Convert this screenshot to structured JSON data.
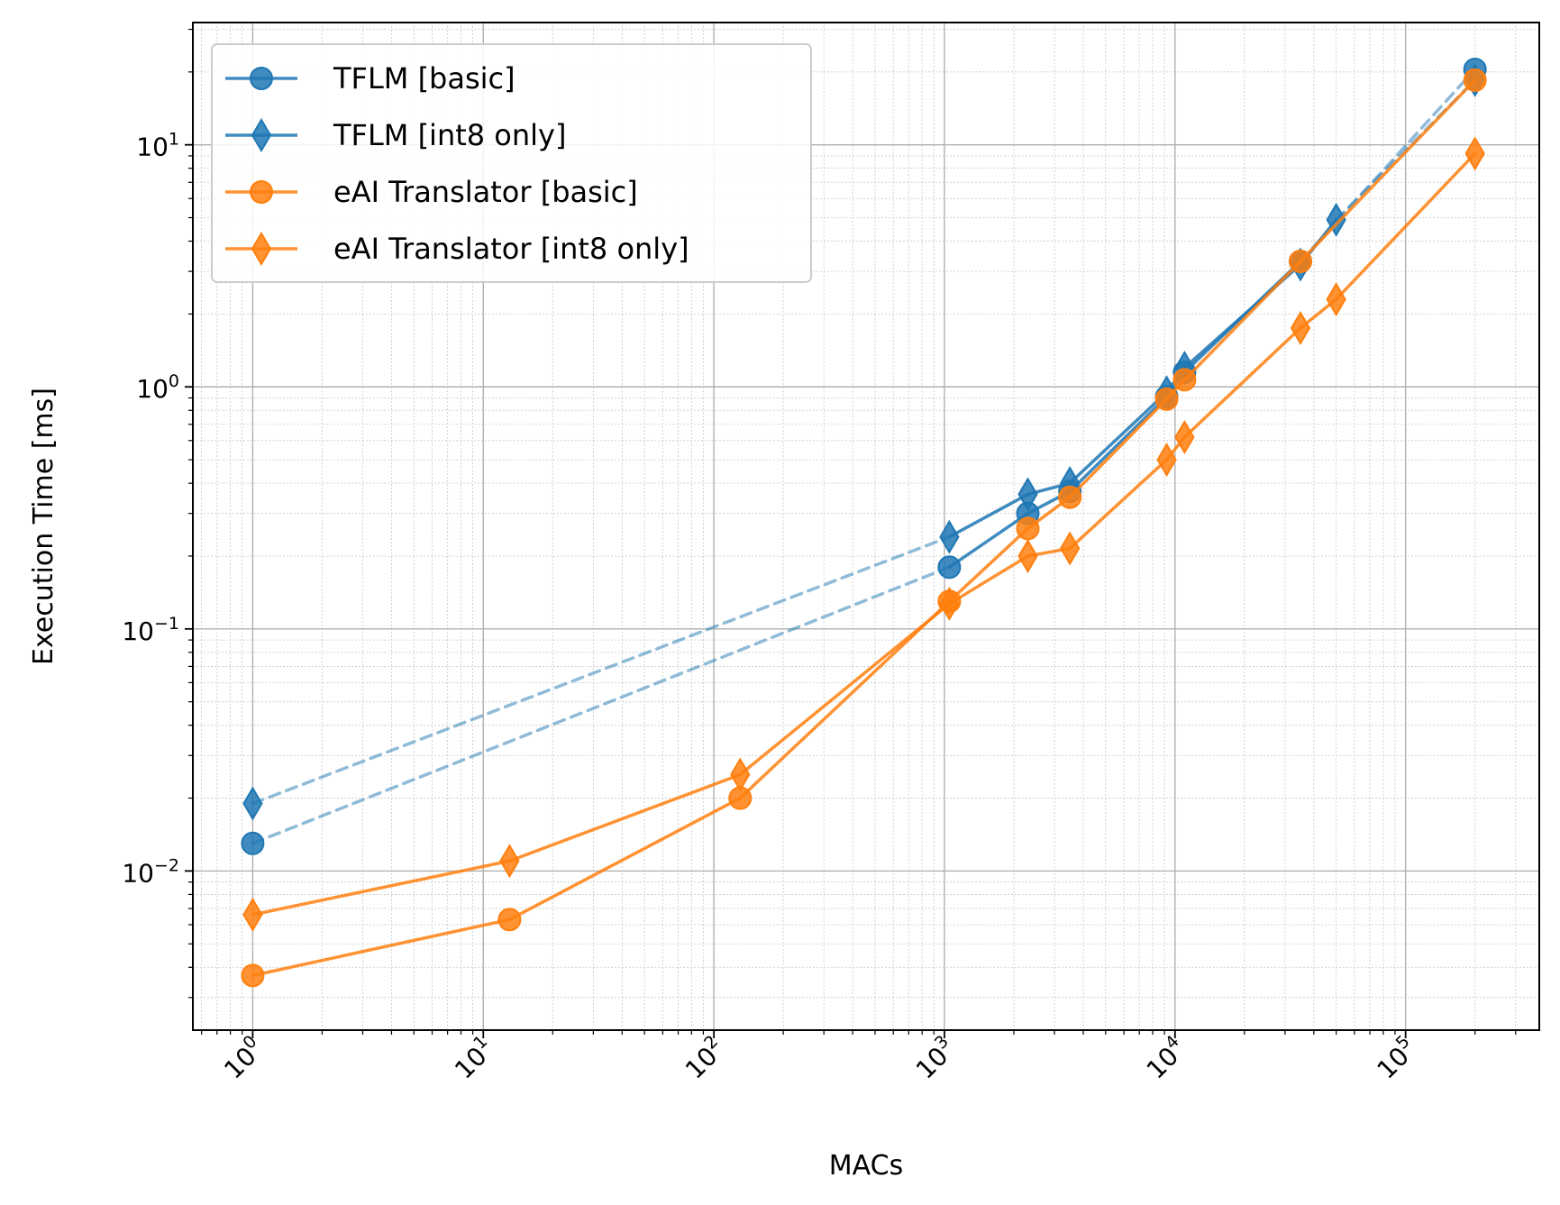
{
  "chart_data": {
    "type": "line",
    "xlabel": "MACs",
    "ylabel": "Execution Time [ms]",
    "xscale": "log",
    "yscale": "log",
    "xlim": [
      0.55,
      380000
    ],
    "ylim": [
      0.0022,
      32
    ],
    "grid": "major and minor",
    "legend_position": "top-left",
    "x_ticks": [
      {
        "value": 1,
        "base": "10",
        "exp": "0"
      },
      {
        "value": 10,
        "base": "10",
        "exp": "1"
      },
      {
        "value": 100,
        "base": "10",
        "exp": "2"
      },
      {
        "value": 1000,
        "base": "10",
        "exp": "3"
      },
      {
        "value": 10000,
        "base": "10",
        "exp": "4"
      },
      {
        "value": 100000,
        "base": "10",
        "exp": "5"
      }
    ],
    "y_ticks": [
      {
        "value": 0.01,
        "base": "10",
        "exp": "−2"
      },
      {
        "value": 0.1,
        "base": "10",
        "exp": "−1"
      },
      {
        "value": 1,
        "base": "10",
        "exp": "0"
      },
      {
        "value": 10,
        "base": "10",
        "exp": "1"
      }
    ],
    "series": [
      {
        "name": "TFLM [basic]",
        "color": "#1f77b4",
        "marker": "circle",
        "points": [
          [
            1,
            0.013
          ],
          [
            1050,
            0.18
          ],
          [
            2300,
            0.3
          ],
          [
            3500,
            0.37
          ],
          [
            9200,
            0.91
          ],
          [
            11000,
            1.15
          ],
          [
            35000,
            3.3
          ],
          [
            200000,
            20.5
          ]
        ],
        "dashed_segments": [
          0,
          6
        ]
      },
      {
        "name": "TFLM [int8 only]",
        "color": "#1f77b4",
        "marker": "diamond",
        "points": [
          [
            1,
            0.019
          ],
          [
            1050,
            0.24
          ],
          [
            2300,
            0.36
          ],
          [
            3500,
            0.4
          ],
          [
            9200,
            0.95
          ],
          [
            11000,
            1.2
          ],
          [
            35000,
            3.2
          ],
          [
            50000,
            4.9
          ],
          [
            200000,
            18.5
          ]
        ],
        "dashed_segments": [
          0,
          7
        ]
      },
      {
        "name": "eAI Translator [basic]",
        "color": "#ff7f0e",
        "marker": "circle",
        "points": [
          [
            1,
            0.0037
          ],
          [
            13,
            0.0063
          ],
          [
            130,
            0.02
          ],
          [
            1050,
            0.13
          ],
          [
            2300,
            0.26
          ],
          [
            3500,
            0.35
          ],
          [
            9200,
            0.89
          ],
          [
            11000,
            1.07
          ],
          [
            35000,
            3.3
          ],
          [
            200000,
            18.5
          ]
        ],
        "dashed_segments": []
      },
      {
        "name": "eAI Translator [int8 only]",
        "color": "#ff7f0e",
        "marker": "diamond",
        "points": [
          [
            1,
            0.0066
          ],
          [
            13,
            0.011
          ],
          [
            130,
            0.025
          ],
          [
            1050,
            0.127
          ],
          [
            2300,
            0.2
          ],
          [
            3500,
            0.215
          ],
          [
            9200,
            0.5
          ],
          [
            11000,
            0.62
          ],
          [
            35000,
            1.75
          ],
          [
            50000,
            2.3
          ],
          [
            200000,
            9.2
          ]
        ],
        "dashed_segments": []
      }
    ]
  }
}
